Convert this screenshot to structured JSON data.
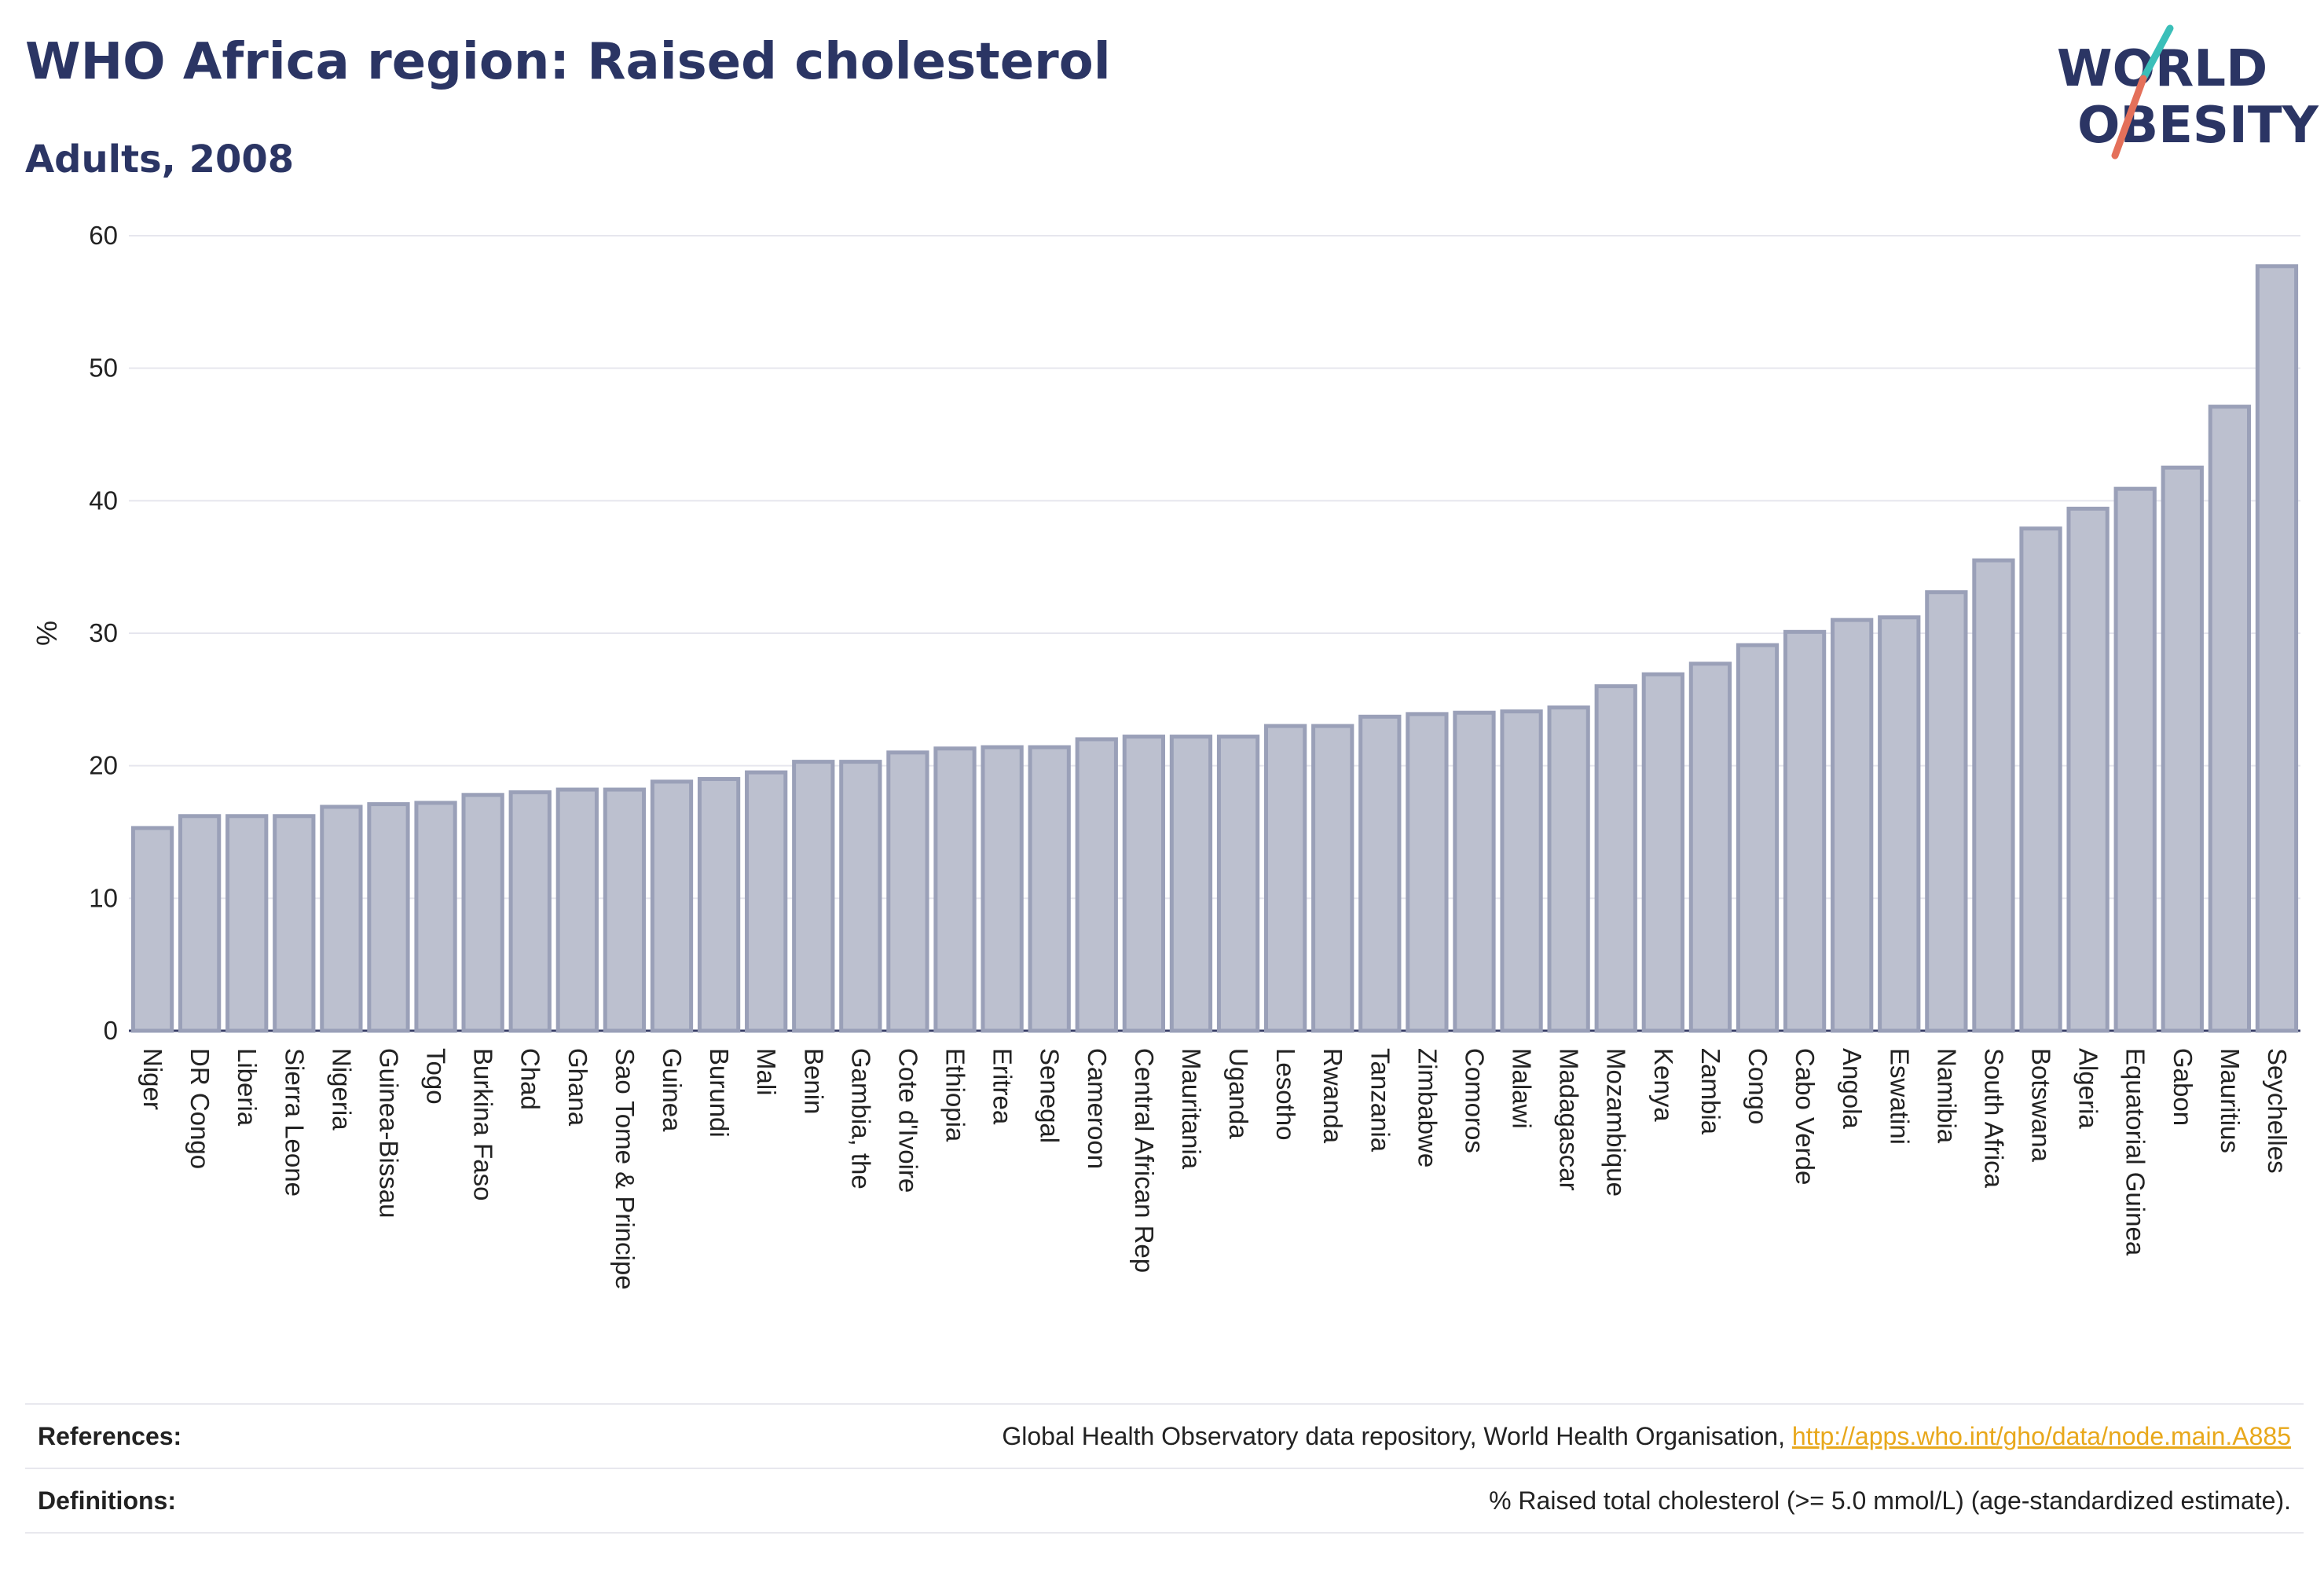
{
  "header": {
    "title": "WHO Africa region: Raised cholesterol",
    "subtitle": "Adults, 2008"
  },
  "logo": {
    "line1": "WORLD",
    "line2": "OBESITY",
    "accent_colors": [
      "#3bbfb9",
      "#e4705a"
    ]
  },
  "footer": {
    "references_label": "References:",
    "references_text": "Global Health Observatory data repository, World Health Organisation,",
    "references_link": "http://apps.who.int/gho/data/node.main.A885",
    "definitions_label": "Definitions:",
    "definitions_text": "% Raised total cholesterol (>= 5.0 mmol/L) (age-standardized estimate)."
  },
  "colors": {
    "bar_fill": "#bcc0cf",
    "bar_stroke": "#9aa0b8",
    "title": "#2b3564",
    "grid": "#e6e6ee",
    "link": "#e8a81c"
  },
  "chart_data": {
    "type": "bar",
    "title": "WHO Africa region: Raised cholesterol",
    "subtitle": "Adults, 2008",
    "xlabel": "",
    "ylabel": "%",
    "ylim": [
      0,
      60
    ],
    "yticks": [
      0,
      10,
      20,
      30,
      40,
      50,
      60
    ],
    "grid": true,
    "categories": [
      "Niger",
      "DR Congo",
      "Liberia",
      "Sierra Leone",
      "Nigeria",
      "Guinea-Bissau",
      "Togo",
      "Burkina Faso",
      "Chad",
      "Ghana",
      "Sao Tome & Principe",
      "Guinea",
      "Burundi",
      "Mali",
      "Benin",
      "Gambia, the",
      "Cote d'Ivoire",
      "Ethiopia",
      "Eritrea",
      "Senegal",
      "Cameroon",
      "Central African Rep",
      "Mauritania",
      "Uganda",
      "Lesotho",
      "Rwanda",
      "Tanzania",
      "Zimbabwe",
      "Comoros",
      "Malawi",
      "Madagascar",
      "Mozambique",
      "Kenya",
      "Zambia",
      "Congo",
      "Cabo Verde",
      "Angola",
      "Eswatini",
      "Namibia",
      "South Africa",
      "Botswana",
      "Algeria",
      "Equatorial Guinea",
      "Gabon",
      "Mauritius",
      "Seychelles"
    ],
    "values": [
      15.3,
      16.2,
      16.2,
      16.2,
      16.9,
      17.1,
      17.2,
      17.8,
      18.0,
      18.2,
      18.2,
      18.8,
      19.0,
      19.5,
      20.3,
      20.3,
      21.0,
      21.3,
      21.4,
      21.4,
      22.0,
      22.2,
      22.2,
      22.2,
      23.0,
      23.0,
      23.7,
      23.9,
      24.0,
      24.1,
      24.4,
      26.0,
      26.9,
      27.7,
      29.1,
      30.1,
      31.0,
      31.2,
      33.1,
      35.5,
      37.9,
      39.4,
      40.9,
      42.5,
      47.1,
      57.7
    ]
  }
}
